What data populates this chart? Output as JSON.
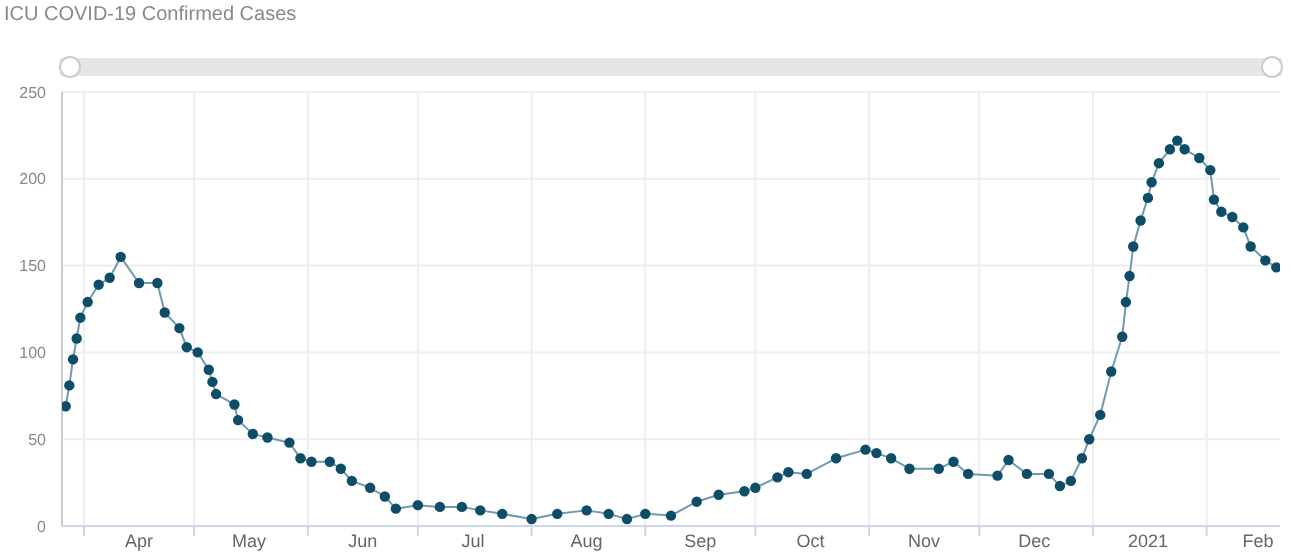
{
  "chart_data": {
    "type": "line",
    "title": "ICU COVID-19 Confirmed Cases",
    "x": [
      "2020-03-27",
      "2020-03-28",
      "2020-03-29",
      "2020-03-30",
      "2020-03-31",
      "2020-04-02",
      "2020-04-05",
      "2020-04-08",
      "2020-04-11",
      "2020-04-16",
      "2020-04-21",
      "2020-04-23",
      "2020-04-27",
      "2020-04-29",
      "2020-05-02",
      "2020-05-05",
      "2020-05-06",
      "2020-05-07",
      "2020-05-12",
      "2020-05-13",
      "2020-05-17",
      "2020-05-21",
      "2020-05-27",
      "2020-05-30",
      "2020-06-02",
      "2020-06-07",
      "2020-06-10",
      "2020-06-13",
      "2020-06-18",
      "2020-06-22",
      "2020-06-25",
      "2020-07-01",
      "2020-07-07",
      "2020-07-13",
      "2020-07-18",
      "2020-07-24",
      "2020-08-01",
      "2020-08-08",
      "2020-08-16",
      "2020-08-22",
      "2020-08-27",
      "2020-09-01",
      "2020-09-08",
      "2020-09-15",
      "2020-09-21",
      "2020-09-28",
      "2020-10-01",
      "2020-10-07",
      "2020-10-10",
      "2020-10-15",
      "2020-10-23",
      "2020-10-31",
      "2020-11-03",
      "2020-11-07",
      "2020-11-12",
      "2020-11-20",
      "2020-11-24",
      "2020-11-28",
      "2020-12-06",
      "2020-12-09",
      "2020-12-14",
      "2020-12-20",
      "2020-12-23",
      "2020-12-26",
      "2020-12-29",
      "2020-12-31",
      "2021-01-03",
      "2021-01-06",
      "2021-01-09",
      "2021-01-10",
      "2021-01-11",
      "2021-01-12",
      "2021-01-14",
      "2021-01-16",
      "2021-01-17",
      "2021-01-19",
      "2021-01-22",
      "2021-01-24",
      "2021-01-26",
      "2021-01-30",
      "2021-02-02",
      "2021-02-03",
      "2021-02-05",
      "2021-02-08",
      "2021-02-11",
      "2021-02-13",
      "2021-02-17",
      "2021-02-20"
    ],
    "series": [
      {
        "color": "#0d4d68",
        "values": [
          69,
          81,
          96,
          108,
          120,
          129,
          139,
          143,
          155,
          140,
          140,
          123,
          114,
          103,
          100,
          90,
          83,
          76,
          70,
          61,
          53,
          51,
          48,
          39,
          37,
          37,
          33,
          26,
          22,
          17,
          10,
          12,
          11,
          11,
          9,
          7,
          4,
          7,
          9,
          7,
          4,
          7,
          6,
          14,
          18,
          20,
          22,
          28,
          31,
          30,
          39,
          44,
          42,
          39,
          33,
          33,
          37,
          30,
          29,
          38,
          30,
          30,
          23,
          26,
          39,
          50,
          64,
          89,
          109,
          129,
          144,
          161,
          176,
          189,
          198,
          209,
          217,
          222,
          217,
          212,
          205,
          188,
          181,
          178,
          172,
          161,
          153,
          149
        ]
      }
    ],
    "xlim": [
      "2020-03-26",
      "2021-02-21"
    ],
    "xticks": [
      {
        "value": "2020-04-01",
        "label": null
      },
      {
        "value": "2020-04-16",
        "label": "Apr"
      },
      {
        "value": "2020-05-01",
        "label": null
      },
      {
        "value": "2020-05-16",
        "label": "May"
      },
      {
        "value": "2020-06-01",
        "label": null
      },
      {
        "value": "2020-06-16",
        "label": "Jun"
      },
      {
        "value": "2020-07-01",
        "label": null
      },
      {
        "value": "2020-07-16",
        "label": "Jul"
      },
      {
        "value": "2020-08-01",
        "label": null
      },
      {
        "value": "2020-08-16",
        "label": "Aug"
      },
      {
        "value": "2020-09-01",
        "label": null
      },
      {
        "value": "2020-09-16",
        "label": "Sep"
      },
      {
        "value": "2020-10-01",
        "label": null
      },
      {
        "value": "2020-10-16",
        "label": "Oct"
      },
      {
        "value": "2020-11-01",
        "label": null
      },
      {
        "value": "2020-11-16",
        "label": "Nov"
      },
      {
        "value": "2020-12-01",
        "label": null
      },
      {
        "value": "2020-12-16",
        "label": "Dec"
      },
      {
        "value": "2021-01-01",
        "label": null
      },
      {
        "value": "2021-01-16",
        "label": "2021"
      },
      {
        "value": "2021-02-01",
        "label": null
      },
      {
        "value": "2021-02-15",
        "label": "Feb"
      }
    ],
    "ylim": [
      0,
      250
    ],
    "yticks": [
      0,
      50,
      100,
      150,
      200,
      250
    ],
    "grid": true,
    "marker": "circle",
    "line_style": "solid"
  }
}
